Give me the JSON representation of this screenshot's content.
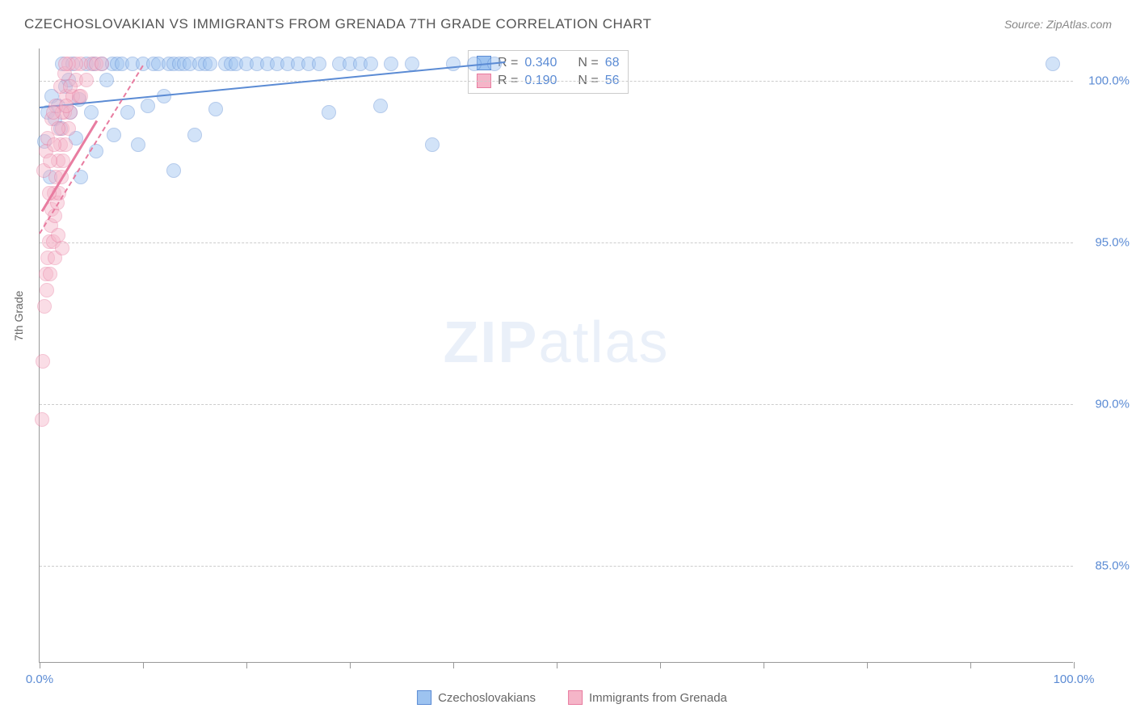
{
  "title": "CZECHOSLOVAKIAN VS IMMIGRANTS FROM GRENADA 7TH GRADE CORRELATION CHART",
  "source": "Source: ZipAtlas.com",
  "ylabel": "7th Grade",
  "watermark_bold": "ZIP",
  "watermark_rest": "atlas",
  "chart": {
    "type": "scatter",
    "xlim": [
      0,
      100
    ],
    "ylim": [
      82,
      101
    ],
    "yticks": [
      85,
      90,
      95,
      100
    ],
    "ytick_labels": [
      "85.0%",
      "90.0%",
      "95.0%",
      "100.0%"
    ],
    "xticks": [
      0,
      10,
      20,
      30,
      40,
      50,
      60,
      70,
      80,
      90,
      100
    ],
    "xtick_label_left": "0.0%",
    "xtick_label_right": "100.0%",
    "grid_color": "#cccccc",
    "axis_color": "#999999",
    "background_color": "#ffffff",
    "marker_radius": 9,
    "series": [
      {
        "name": "Czechoslovakians",
        "color_fill": "#9dc3f0",
        "color_stroke": "#5b8bd4",
        "trend": {
          "x1": 0,
          "y1": 99.2,
          "x2": 45,
          "y2": 100.6,
          "dashed": false,
          "width": 2
        },
        "stats": {
          "R": "0.340",
          "N": "68"
        },
        "points": [
          [
            0.5,
            98.1
          ],
          [
            0.8,
            99.0
          ],
          [
            1.0,
            97.0
          ],
          [
            1.2,
            99.5
          ],
          [
            1.5,
            98.8
          ],
          [
            1.8,
            99.2
          ],
          [
            2.0,
            98.5
          ],
          [
            2.2,
            100.5
          ],
          [
            2.5,
            99.8
          ],
          [
            2.8,
            100.0
          ],
          [
            3.0,
            99.0
          ],
          [
            3.2,
            100.5
          ],
          [
            3.5,
            98.2
          ],
          [
            3.8,
            99.4
          ],
          [
            4.0,
            97.0
          ],
          [
            4.5,
            100.5
          ],
          [
            5.0,
            99.0
          ],
          [
            5.2,
            100.5
          ],
          [
            5.5,
            97.8
          ],
          [
            6.0,
            100.5
          ],
          [
            6.5,
            100.0
          ],
          [
            7.0,
            100.5
          ],
          [
            7.2,
            98.3
          ],
          [
            7.5,
            100.5
          ],
          [
            8.0,
            100.5
          ],
          [
            8.5,
            99.0
          ],
          [
            9.0,
            100.5
          ],
          [
            9.5,
            98.0
          ],
          [
            10.0,
            100.5
          ],
          [
            10.5,
            99.2
          ],
          [
            11.0,
            100.5
          ],
          [
            11.5,
            100.5
          ],
          [
            12.0,
            99.5
          ],
          [
            12.5,
            100.5
          ],
          [
            13.0,
            100.5
          ],
          [
            13.5,
            100.5
          ],
          [
            14.0,
            100.5
          ],
          [
            14.5,
            100.5
          ],
          [
            15.0,
            98.3
          ],
          [
            15.5,
            100.5
          ],
          [
            16.0,
            100.5
          ],
          [
            16.5,
            100.5
          ],
          [
            17.0,
            99.1
          ],
          [
            18.0,
            100.5
          ],
          [
            18.5,
            100.5
          ],
          [
            19.0,
            100.5
          ],
          [
            20.0,
            100.5
          ],
          [
            21.0,
            100.5
          ],
          [
            22.0,
            100.5
          ],
          [
            23.0,
            100.5
          ],
          [
            24.0,
            100.5
          ],
          [
            25.0,
            100.5
          ],
          [
            26.0,
            100.5
          ],
          [
            27.0,
            100.5
          ],
          [
            28.0,
            99.0
          ],
          [
            29.0,
            100.5
          ],
          [
            30.0,
            100.5
          ],
          [
            31.0,
            100.5
          ],
          [
            32.0,
            100.5
          ],
          [
            33.0,
            99.2
          ],
          [
            34.0,
            100.5
          ],
          [
            36.0,
            100.5
          ],
          [
            38.0,
            98.0
          ],
          [
            40.0,
            100.5
          ],
          [
            42.0,
            100.5
          ],
          [
            44.0,
            100.5
          ],
          [
            98.0,
            100.5
          ],
          [
            13.0,
            97.2
          ]
        ]
      },
      {
        "name": "Immigrants from Grenada",
        "color_fill": "#f5b5c8",
        "color_stroke": "#e87ca0",
        "trend": {
          "x1": 0,
          "y1": 95.3,
          "x2": 10,
          "y2": 100.5,
          "dashed": true,
          "width": 2
        },
        "trend_solid": {
          "x1": 0.2,
          "y1": 96.0,
          "x2": 5.5,
          "y2": 98.8
        },
        "stats": {
          "R": "0.190",
          "N": "56"
        },
        "points": [
          [
            0.2,
            89.5
          ],
          [
            0.3,
            91.3
          ],
          [
            0.5,
            93.0
          ],
          [
            0.6,
            94.0
          ],
          [
            0.7,
            93.5
          ],
          [
            0.8,
            94.5
          ],
          [
            0.9,
            95.0
          ],
          [
            1.0,
            94.0
          ],
          [
            1.1,
            95.5
          ],
          [
            1.2,
            96.0
          ],
          [
            1.3,
            95.0
          ],
          [
            1.4,
            96.5
          ],
          [
            1.5,
            95.8
          ],
          [
            1.6,
            97.0
          ],
          [
            1.7,
            96.2
          ],
          [
            1.8,
            97.5
          ],
          [
            1.9,
            96.5
          ],
          [
            2.0,
            98.0
          ],
          [
            2.1,
            97.0
          ],
          [
            2.2,
            98.5
          ],
          [
            2.3,
            97.5
          ],
          [
            2.4,
            99.0
          ],
          [
            2.5,
            98.0
          ],
          [
            2.6,
            99.5
          ],
          [
            2.8,
            98.5
          ],
          [
            3.0,
            99.0
          ],
          [
            3.2,
            99.5
          ],
          [
            3.5,
            100.0
          ],
          [
            3.8,
            99.5
          ],
          [
            4.0,
            100.5
          ],
          [
            4.5,
            100.0
          ],
          [
            5.0,
            100.5
          ],
          [
            5.5,
            100.5
          ],
          [
            6.0,
            100.5
          ],
          [
            0.4,
            97.2
          ],
          [
            0.6,
            97.8
          ],
          [
            0.8,
            98.2
          ],
          [
            1.0,
            97.5
          ],
          [
            1.2,
            98.8
          ],
          [
            1.4,
            98.0
          ],
          [
            1.6,
            99.2
          ],
          [
            1.8,
            98.5
          ],
          [
            2.0,
            99.8
          ],
          [
            2.2,
            99.0
          ],
          [
            2.4,
            100.2
          ],
          [
            2.6,
            99.2
          ],
          [
            2.8,
            100.5
          ],
          [
            3.0,
            99.8
          ],
          [
            3.5,
            100.5
          ],
          [
            4.0,
            99.5
          ],
          [
            1.5,
            94.5
          ],
          [
            1.8,
            95.2
          ],
          [
            2.2,
            94.8
          ],
          [
            0.9,
            96.5
          ],
          [
            1.3,
            99.0
          ],
          [
            2.5,
            100.5
          ]
        ]
      }
    ]
  },
  "legend": {
    "series1_label": "Czechoslovakians",
    "series2_label": "Immigrants from Grenada"
  },
  "stats_box": {
    "r_label": "R =",
    "n_label": "N ="
  }
}
